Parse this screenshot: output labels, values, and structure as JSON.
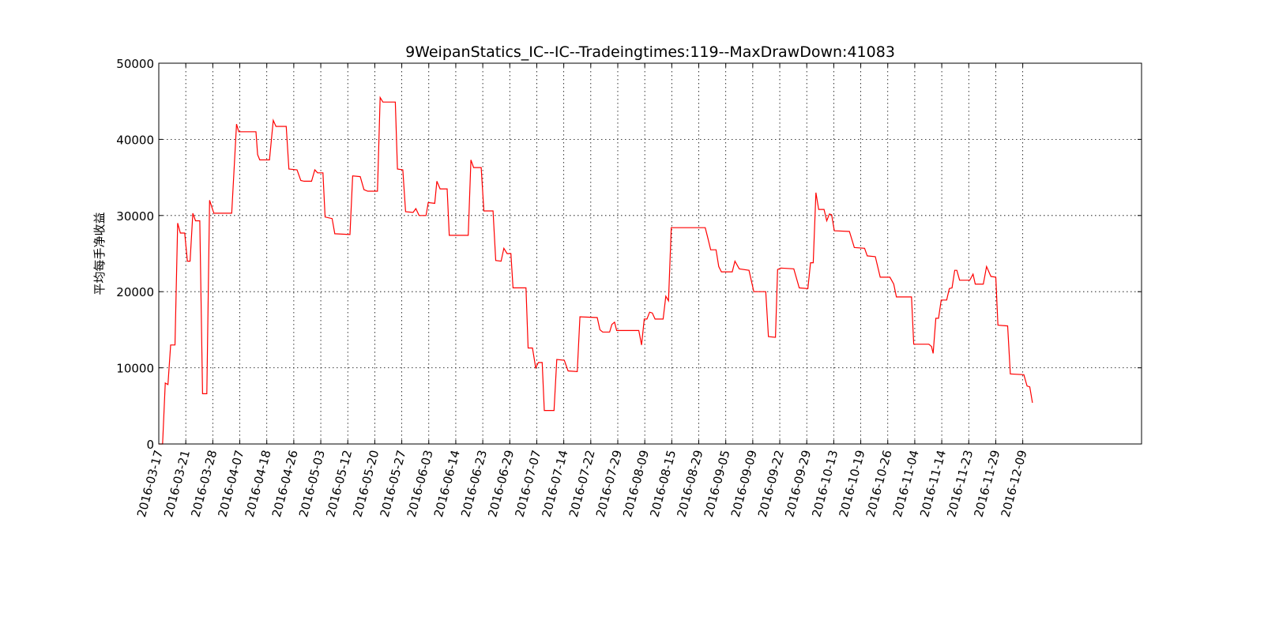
{
  "chart_data": {
    "type": "line",
    "title": "9WeipanStatics_IC--IC--Tradeingtimes:119--MaxDrawDown:41083",
    "xlabel": "",
    "ylabel": "平均每手净收益",
    "ylim": [
      0,
      50000
    ],
    "yticks": [
      0,
      10000,
      20000,
      30000,
      40000,
      50000
    ],
    "ytick_labels": [
      "0",
      "10000",
      "20000",
      "30000",
      "40000",
      "50000"
    ],
    "x_is_trade_index": true,
    "xlim": [
      0,
      182
    ],
    "xticks": [
      0,
      5,
      10,
      15,
      20,
      25,
      30,
      35,
      40,
      45,
      50,
      55,
      60,
      65,
      70,
      75,
      80,
      85,
      90,
      95,
      100,
      105,
      110,
      115,
      120,
      125,
      130,
      135,
      140,
      145,
      150,
      155,
      160
    ],
    "xtick_labels": [
      "2016-03-17",
      "2016-03-21",
      "2016-03-28",
      "2016-04-07",
      "2016-04-18",
      "2016-04-26",
      "2016-05-03",
      "2016-05-12",
      "2016-05-20",
      "2016-05-27",
      "2016-06-03",
      "2016-06-14",
      "2016-06-23",
      "2016-06-29",
      "2016-07-07",
      "2016-07-14",
      "2016-07-22",
      "2016-07-29",
      "2016-08-09",
      "2016-08-15",
      "2016-08-29",
      "2016-09-05",
      "2016-09-09",
      "2016-09-22",
      "2016-09-29",
      "2016-10-13",
      "2016-10-19",
      "2016-10-26",
      "2016-11-04",
      "2016-11-14",
      "2016-11-23",
      "2016-11-29",
      "2016-12-09"
    ],
    "grid": true,
    "legend": "none",
    "series": [
      {
        "name": "",
        "color": "#ff0000",
        "points": [
          [
            0,
            0
          ],
          [
            0.7,
            0
          ],
          [
            1.2,
            8000
          ],
          [
            1.7,
            7800
          ],
          [
            2.2,
            13000
          ],
          [
            3,
            13000
          ],
          [
            3.5,
            29000
          ],
          [
            4,
            27700
          ],
          [
            4.8,
            27700
          ],
          [
            5.3,
            24000
          ],
          [
            5.8,
            24000
          ],
          [
            6.3,
            30300
          ],
          [
            6.8,
            29300
          ],
          [
            7.6,
            29300
          ],
          [
            8.1,
            6600
          ],
          [
            8.9,
            6600
          ],
          [
            9.4,
            32000
          ],
          [
            10.2,
            30300
          ],
          [
            13.5,
            30300
          ],
          [
            14.4,
            42000
          ],
          [
            14.8,
            41000
          ],
          [
            18,
            41000
          ],
          [
            18.3,
            38000
          ],
          [
            18.7,
            37300
          ],
          [
            20.5,
            37300
          ],
          [
            21.2,
            42500
          ],
          [
            21.7,
            41700
          ],
          [
            23.6,
            41700
          ],
          [
            24.1,
            36100
          ],
          [
            25.6,
            36000
          ],
          [
            26.3,
            34600
          ],
          [
            26.9,
            34500
          ],
          [
            28.3,
            34500
          ],
          [
            28.9,
            36000
          ],
          [
            29.4,
            35600
          ],
          [
            30.4,
            35600
          ],
          [
            30.8,
            29800
          ],
          [
            32.1,
            29600
          ],
          [
            32.6,
            27600
          ],
          [
            35.4,
            27500
          ],
          [
            35.9,
            35200
          ],
          [
            37.3,
            35100
          ],
          [
            38,
            33400
          ],
          [
            38.7,
            33200
          ],
          [
            40.5,
            33200
          ],
          [
            41,
            45500
          ],
          [
            41.5,
            44900
          ],
          [
            43.8,
            44900
          ],
          [
            44.2,
            36100
          ],
          [
            45.2,
            36000
          ],
          [
            45.7,
            30500
          ],
          [
            47.1,
            30400
          ],
          [
            47.6,
            30900
          ],
          [
            48.2,
            30000
          ],
          [
            49.5,
            30000
          ],
          [
            49.9,
            31700
          ],
          [
            51.1,
            31600
          ],
          [
            51.5,
            34500
          ],
          [
            52.1,
            33500
          ],
          [
            53.4,
            33500
          ],
          [
            53.8,
            27400
          ],
          [
            57.3,
            27400
          ],
          [
            57.8,
            37300
          ],
          [
            58.3,
            36300
          ],
          [
            59.7,
            36300
          ],
          [
            60.2,
            30600
          ],
          [
            61.9,
            30600
          ],
          [
            62.4,
            24100
          ],
          [
            63.4,
            24000
          ],
          [
            63.9,
            25700
          ],
          [
            64.5,
            25000
          ],
          [
            65.2,
            25000
          ],
          [
            65.6,
            20500
          ],
          [
            68,
            20500
          ],
          [
            68.4,
            12600
          ],
          [
            69.2,
            12600
          ],
          [
            69.8,
            10000
          ],
          [
            70.3,
            10700
          ],
          [
            71,
            10700
          ],
          [
            71.4,
            4400
          ],
          [
            73.2,
            4400
          ],
          [
            73.7,
            11100
          ],
          [
            75.1,
            11000
          ],
          [
            75.8,
            9600
          ],
          [
            77.5,
            9500
          ],
          [
            78,
            16700
          ],
          [
            81.2,
            16600
          ],
          [
            81.7,
            15000
          ],
          [
            82.2,
            14700
          ],
          [
            83.5,
            14700
          ],
          [
            83.9,
            15700
          ],
          [
            84.4,
            16000
          ],
          [
            84.8,
            14900
          ],
          [
            88.9,
            14900
          ],
          [
            89.4,
            13000
          ],
          [
            89.9,
            16400
          ],
          [
            90.4,
            16400
          ],
          [
            90.9,
            17300
          ],
          [
            91.4,
            17200
          ],
          [
            91.9,
            16400
          ],
          [
            93.4,
            16400
          ],
          [
            93.9,
            19400
          ],
          [
            94.4,
            18800
          ],
          [
            94.9,
            28400
          ],
          [
            101.2,
            28400
          ],
          [
            101.7,
            27000
          ],
          [
            102.2,
            25500
          ],
          [
            103.2,
            25500
          ],
          [
            103.7,
            23300
          ],
          [
            104.2,
            22600
          ],
          [
            106.2,
            22600
          ],
          [
            106.7,
            24000
          ],
          [
            107.5,
            23000
          ],
          [
            109.3,
            22800
          ],
          [
            110.2,
            20000
          ],
          [
            112.4,
            20000
          ],
          [
            112.9,
            14100
          ],
          [
            114.2,
            14000
          ],
          [
            114.6,
            22900
          ],
          [
            115.2,
            23100
          ],
          [
            117.6,
            23000
          ],
          [
            118.6,
            20500
          ],
          [
            120.2,
            20400
          ],
          [
            120.7,
            23800
          ],
          [
            121.2,
            23800
          ],
          [
            121.7,
            33000
          ],
          [
            122.2,
            30800
          ],
          [
            123.2,
            30800
          ],
          [
            123.7,
            29300
          ],
          [
            124.2,
            30200
          ],
          [
            124.6,
            30100
          ],
          [
            125.1,
            28000
          ],
          [
            127.9,
            27900
          ],
          [
            128.8,
            25800
          ],
          [
            130.7,
            25700
          ],
          [
            131.2,
            24700
          ],
          [
            132.7,
            24600
          ],
          [
            133.6,
            21900
          ],
          [
            135.4,
            21900
          ],
          [
            136.1,
            21000
          ],
          [
            136.6,
            19300
          ],
          [
            139.4,
            19300
          ],
          [
            139.8,
            13100
          ],
          [
            142.6,
            13100
          ],
          [
            143.1,
            12800
          ],
          [
            143.4,
            11900
          ],
          [
            143.9,
            16500
          ],
          [
            144.4,
            16500
          ],
          [
            144.9,
            18900
          ],
          [
            145.9,
            18900
          ],
          [
            146.4,
            20400
          ],
          [
            146.9,
            20500
          ],
          [
            147.4,
            22800
          ],
          [
            147.8,
            22800
          ],
          [
            148.3,
            21500
          ],
          [
            150.2,
            21500
          ],
          [
            150.8,
            22300
          ],
          [
            151.2,
            21000
          ],
          [
            152.7,
            21000
          ],
          [
            153.3,
            23300
          ],
          [
            154.1,
            22000
          ],
          [
            155,
            21900
          ],
          [
            155.4,
            15600
          ],
          [
            157.2,
            15500
          ],
          [
            157.7,
            9200
          ],
          [
            160.2,
            9100
          ],
          [
            160.8,
            7600
          ],
          [
            161.3,
            7500
          ],
          [
            161.8,
            5400
          ]
        ]
      }
    ]
  }
}
